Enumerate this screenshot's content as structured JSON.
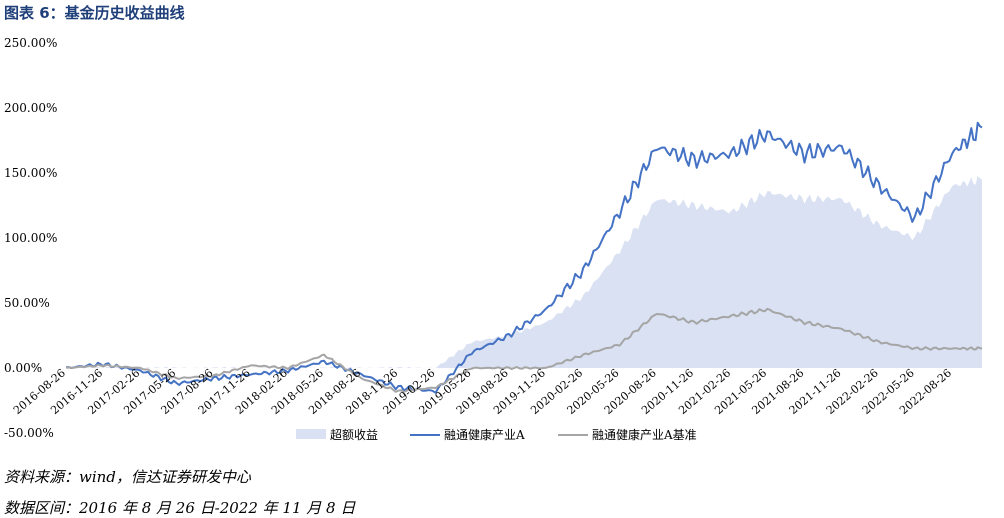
{
  "title": "图表 6：基金历史收益曲线",
  "source_note": "资料来源：wind，信达证券研发中心",
  "range_note": "数据区间：2016 年 8 月 26 日-2022 年 11 月 8 日",
  "colors": {
    "title": "#1f3f7a",
    "excess_fill": "#d9e1f2",
    "fund_line": "#4472c4",
    "benchmark_line": "#a5a5a5"
  },
  "chart_data": {
    "type": "line",
    "title": "",
    "xlabel": "",
    "ylabel": "",
    "ylim": [
      -50,
      250
    ],
    "y_ticks": [
      "-50.00%",
      "0.00%",
      "50.00%",
      "100.00%",
      "150.00%",
      "200.00%",
      "250.00%"
    ],
    "grid": false,
    "legend_position": "bottom",
    "x_ticks": [
      "2016-08-26",
      "2016-11-26",
      "2017-02-26",
      "2017-05-26",
      "2017-08-26",
      "2017-11-26",
      "2018-02-26",
      "2018-05-26",
      "2018-08-26",
      "2018-11-26",
      "2019-02-26",
      "2019-05-26",
      "2019-08-26",
      "2019-11-26",
      "2020-02-26",
      "2020-05-26",
      "2020-08-26",
      "2020-11-26",
      "2021-02-26",
      "2021-05-26",
      "2021-08-26",
      "2021-11-26",
      "2022-02-26",
      "2022-05-26",
      "2022-08-26"
    ],
    "x": [
      "2016-08-26",
      "2016-11-26",
      "2017-02-26",
      "2017-05-26",
      "2017-08-26",
      "2017-11-26",
      "2018-02-26",
      "2018-05-26",
      "2018-08-26",
      "2018-11-26",
      "2019-02-26",
      "2019-05-26",
      "2019-08-26",
      "2019-11-26",
      "2020-02-26",
      "2020-05-26",
      "2020-08-26",
      "2020-11-26",
      "2021-02-26",
      "2021-05-26",
      "2021-08-26",
      "2021-11-26",
      "2022-02-26",
      "2022-05-26",
      "2022-08-26",
      "2022-11-08"
    ],
    "series": [
      {
        "name": "超额收益",
        "kind": "area",
        "values": [
          0,
          0,
          0,
          0,
          0,
          0,
          0,
          0,
          0,
          0,
          0,
          20,
          25,
          35,
          55,
          90,
          130,
          125,
          120,
          135,
          130,
          130,
          110,
          100,
          140,
          145
        ]
      },
      {
        "name": "融通健康产业A",
        "kind": "line",
        "values": [
          0,
          3,
          -2,
          -12,
          -8,
          -5,
          -2,
          5,
          -5,
          -15,
          -18,
          12,
          25,
          45,
          75,
          120,
          170,
          160,
          165,
          180,
          165,
          170,
          140,
          115,
          165,
          185
        ]
      },
      {
        "name": "融通健康产业A基准",
        "kind": "line",
        "values": [
          0,
          2,
          0,
          -8,
          -6,
          2,
          0,
          10,
          -8,
          -18,
          -15,
          0,
          0,
          0,
          10,
          18,
          42,
          35,
          40,
          45,
          35,
          30,
          20,
          15,
          15,
          15
        ]
      }
    ]
  }
}
